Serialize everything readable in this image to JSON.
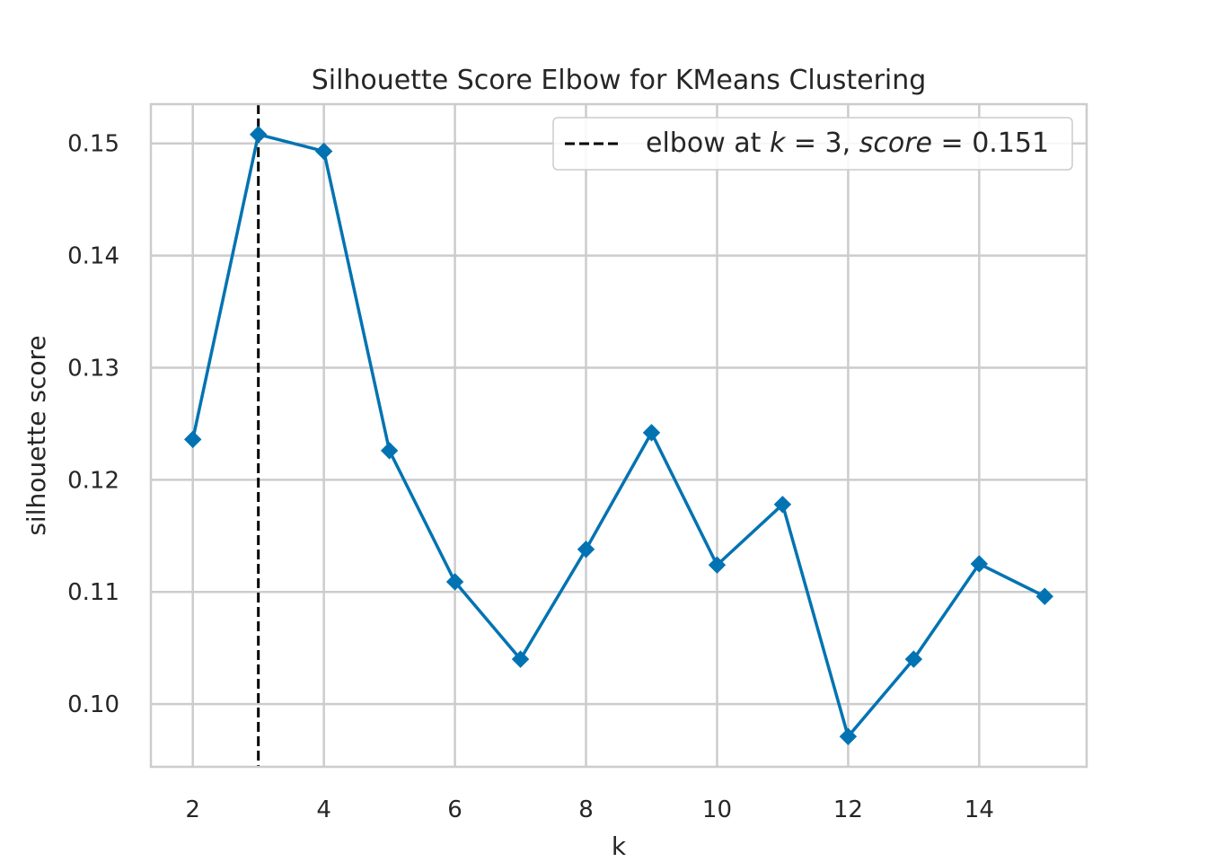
{
  "chart_data": {
    "type": "line",
    "title": "Silhouette Score Elbow for KMeans Clustering",
    "xlabel": "k",
    "ylabel": "silhouette score",
    "x": [
      2,
      3,
      4,
      5,
      6,
      7,
      8,
      9,
      10,
      11,
      12,
      13,
      14,
      15
    ],
    "series": [
      {
        "values": [
          0.1236,
          0.1508,
          0.1493,
          0.1226,
          0.1109,
          0.104,
          0.1138,
          0.1242,
          0.1124,
          0.1178,
          0.0971,
          0.104,
          0.1125,
          0.1096
        ],
        "color": "#0173b2",
        "marker": "diamond"
      }
    ],
    "xlim": [
      1.36,
      15.64
    ],
    "ylim": [
      0.0944,
      0.1535
    ],
    "xticks": [
      2,
      4,
      6,
      8,
      10,
      12,
      14
    ],
    "xtick_labels": [
      "2",
      "4",
      "6",
      "8",
      "10",
      "12",
      "14"
    ],
    "yticks": [
      0.1,
      0.11,
      0.12,
      0.13,
      0.14,
      0.15
    ],
    "ytick_labels": [
      "0.10",
      "0.11",
      "0.12",
      "0.13",
      "0.14",
      "0.15"
    ],
    "grid": true,
    "elbow": {
      "k": 3,
      "score": 0.151,
      "color": "#000000",
      "style": "dashed"
    },
    "legend": {
      "position": "top-right",
      "label_prefix": "elbow at ",
      "k_symbol": "k",
      "k_value": "3",
      "score_symbol": "score",
      "score_value": "0.151",
      "equals": " = ",
      "separator": ", "
    }
  }
}
